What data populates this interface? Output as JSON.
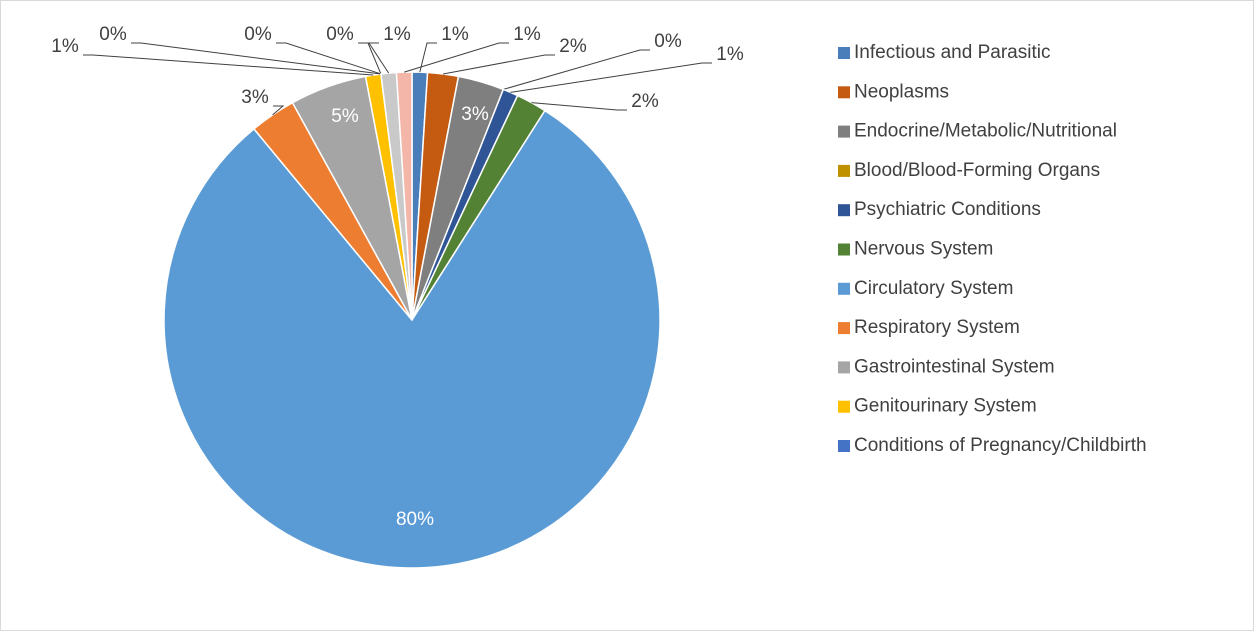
{
  "chart_data": {
    "type": "pie",
    "categories": [
      "Infectious and Parasitic",
      "Neoplasms",
      "Endocrine/Metabolic/Nutritional",
      "Blood/Blood-Forming Organs",
      "Psychiatric Conditions",
      "Nervous System",
      "Circulatory System",
      "Respiratory System",
      "Gastrointestinal System",
      "Genitourinary System",
      "Conditions of Pregnancy/Childbirth",
      null,
      null,
      null,
      null
    ],
    "values": [
      1,
      2,
      3,
      0,
      1,
      2,
      80,
      3,
      5,
      1,
      0,
      0,
      0,
      1,
      1
    ],
    "value_labels": [
      "1%",
      "2%",
      "3%",
      "0%",
      "1%",
      "2%",
      "80%",
      "3%",
      "5%",
      "1%",
      "0%",
      "0%",
      "0%",
      "1%",
      "1%"
    ],
    "colors": [
      "#4a7ebb",
      "#c55a11",
      "#7f7f7f",
      "#bf9000",
      "#2f5597",
      "#548235",
      "#5b9bd5",
      "#ed7d31",
      "#a5a5a5",
      "#ffc000",
      "#4472c4",
      "#70ad47",
      "#9dc3e6",
      "#c9c9c9",
      "#f4b6a8"
    ],
    "legend": "right"
  }
}
